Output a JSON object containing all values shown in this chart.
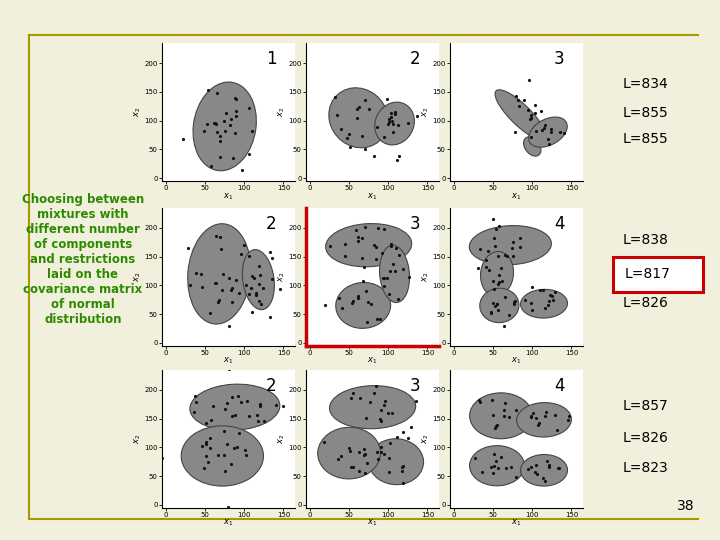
{
  "title_text": "Choosing between\nmixtures with\ndifferent number\nof components\nand restrictions\nlaid on the\ncovariance matrix\nof normal\ndistribution",
  "title_color": "#2d8a00",
  "bg_color": "#f0f0dc",
  "border_color": "#a89800",
  "page_number": "38",
  "L_labels_row1": [
    "L=834",
    "L=855",
    "L=855"
  ],
  "L_labels_row2": [
    "L=838",
    "L=817",
    "L=826"
  ],
  "L_labels_row3": [
    "L=857",
    "L=826",
    "L=823"
  ],
  "highlight_border_color": "#cc0000",
  "grid_labels_row1": [
    "1",
    "2",
    "3"
  ],
  "grid_labels_row2": [
    "2",
    "3",
    "4"
  ],
  "grid_labels_row3": [
    "2",
    "3",
    "4"
  ],
  "ellipse_color": "#888888",
  "ellipse_edge": "#444444",
  "dot_color": "#111111"
}
